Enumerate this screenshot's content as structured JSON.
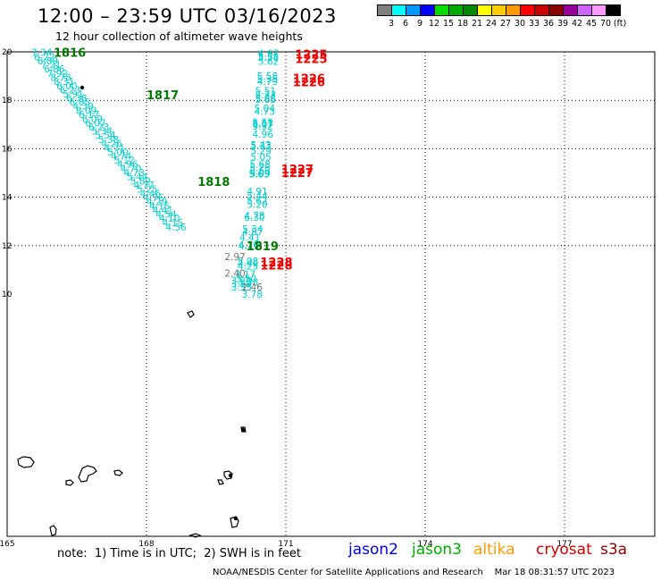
{
  "header": {
    "title": "12:00 – 23:59 UTC 03/16/2023",
    "subtitle": "12 hour collection of altimeter wave heights"
  },
  "legend": {
    "colors": [
      "#7f7f7f",
      "#00ffff",
      "#0099ff",
      "#0000ff",
      "#00dd00",
      "#00aa00",
      "#008800",
      "#ffff00",
      "#ffcc00",
      "#ff9900",
      "#ff0000",
      "#cc0000",
      "#880000",
      "#990099",
      "#cc66ff",
      "#ff99ff",
      "#000000"
    ],
    "labels": [
      "3",
      "6",
      "9",
      "12",
      "15",
      "18",
      "21",
      "24",
      "27",
      "30",
      "33",
      "36",
      "39",
      "42",
      "45",
      "70",
      "(ft)"
    ]
  },
  "map": {
    "lon_ticks": [
      "165",
      "168",
      "171",
      "174",
      "177"
    ],
    "lat_ticks": [
      "20",
      "18",
      "16",
      "14",
      "12",
      "10"
    ],
    "lat_tick_values": [
      20,
      18,
      16,
      14,
      12,
      10
    ],
    "track_colors": {
      "jason3": "#00cccc",
      "cryosat": "#ee0000",
      "low": "#777777"
    },
    "pass_labels": [
      {
        "text": "1816",
        "color": "#007700",
        "lon": 166.0,
        "lat": 19.98
      },
      {
        "text": "1817",
        "color": "#007700",
        "lon": 168.0,
        "lat": 18.22
      },
      {
        "text": "1818",
        "color": "#007700",
        "lon": 169.1,
        "lat": 14.65
      },
      {
        "text": "1819",
        "color": "#007700",
        "lon": 170.15,
        "lat": 12.0
      },
      {
        "text": "1225",
        "color": "#ee0000",
        "lon": 171.2,
        "lat": 19.9
      },
      {
        "text": "1225",
        "color": "#ee0000",
        "lon": 171.2,
        "lat": 19.72
      },
      {
        "text": "1226",
        "color": "#ee0000",
        "lon": 171.15,
        "lat": 18.92
      },
      {
        "text": "1226",
        "color": "#ee0000",
        "lon": 171.15,
        "lat": 18.77
      },
      {
        "text": "1227",
        "color": "#ee0000",
        "lon": 170.9,
        "lat": 15.16
      },
      {
        "text": "1227",
        "color": "#ee0000",
        "lon": 170.9,
        "lat": 15.02
      },
      {
        "text": "1228",
        "color": "#ee0000",
        "lon": 170.45,
        "lat": 11.33
      },
      {
        "text": "1228",
        "color": "#ee0000",
        "lon": 170.45,
        "lat": 11.2
      }
    ],
    "jason3_track": [
      {
        "v": "7.34",
        "lon": 165.52,
        "lat": 19.98
      },
      {
        "v": "6.22",
        "lon": 165.58,
        "lat": 19.8
      },
      {
        "v": "6.89",
        "lon": 165.65,
        "lat": 19.63
      },
      {
        "v": "7.21",
        "lon": 165.72,
        "lat": 19.46
      },
      {
        "v": "6.86",
        "lon": 165.79,
        "lat": 19.29
      },
      {
        "v": "7.92",
        "lon": 165.86,
        "lat": 19.11
      },
      {
        "v": "8.78",
        "lon": 165.93,
        "lat": 18.95
      },
      {
        "v": "8.31",
        "lon": 166.0,
        "lat": 18.78
      },
      {
        "v": "6.00",
        "lon": 166.06,
        "lat": 18.6
      },
      {
        "v": "6.23",
        "lon": 166.13,
        "lat": 18.44
      },
      {
        "v": "5.91",
        "lon": 166.2,
        "lat": 18.26
      },
      {
        "v": "6.38",
        "lon": 166.27,
        "lat": 18.1
      },
      {
        "v": "6.85",
        "lon": 166.34,
        "lat": 17.93
      },
      {
        "v": "4.39",
        "lon": 166.41,
        "lat": 17.76
      },
      {
        "v": "8.09",
        "lon": 166.48,
        "lat": 17.59
      },
      {
        "v": "6.17",
        "lon": 166.54,
        "lat": 17.41
      },
      {
        "v": "6.09",
        "lon": 166.61,
        "lat": 17.24
      },
      {
        "v": "6.07",
        "lon": 166.68,
        "lat": 17.07
      },
      {
        "v": "6.23",
        "lon": 166.75,
        "lat": 16.9
      },
      {
        "v": "5.34",
        "lon": 166.82,
        "lat": 16.73
      },
      {
        "v": "5.54",
        "lon": 166.89,
        "lat": 16.56
      },
      {
        "v": "5.38",
        "lon": 166.96,
        "lat": 16.39
      },
      {
        "v": "4.26",
        "lon": 167.03,
        "lat": 16.22
      },
      {
        "v": "4.71",
        "lon": 167.09,
        "lat": 16.04
      },
      {
        "v": "5.00",
        "lon": 167.16,
        "lat": 15.87
      },
      {
        "v": "4.74",
        "lon": 167.23,
        "lat": 15.7
      },
      {
        "v": "5.12",
        "lon": 167.3,
        "lat": 15.53
      },
      {
        "v": "4.96",
        "lon": 167.37,
        "lat": 15.36
      },
      {
        "v": "4.70",
        "lon": 167.44,
        "lat": 15.19
      },
      {
        "v": "4.73",
        "lon": 167.51,
        "lat": 15.02
      },
      {
        "v": "5.44",
        "lon": 167.58,
        "lat": 14.85
      },
      {
        "v": "5.82",
        "lon": 167.65,
        "lat": 14.67
      },
      {
        "v": "4.77",
        "lon": 167.72,
        "lat": 14.5
      },
      {
        "v": "5.25",
        "lon": 167.79,
        "lat": 14.33
      },
      {
        "v": "4.46",
        "lon": 167.86,
        "lat": 14.16
      },
      {
        "v": "4.76",
        "lon": 167.93,
        "lat": 13.99
      },
      {
        "v": "4.29",
        "lon": 168.0,
        "lat": 13.82
      },
      {
        "v": "4.15",
        "lon": 168.06,
        "lat": 13.64
      },
      {
        "v": "4.41",
        "lon": 168.13,
        "lat": 13.47
      },
      {
        "v": "4.54",
        "lon": 168.2,
        "lat": 13.3
      },
      {
        "v": "4.10",
        "lon": 168.27,
        "lat": 13.13
      },
      {
        "v": "4.15",
        "lon": 168.34,
        "lat": 12.96
      },
      {
        "v": "4.56",
        "lon": 168.41,
        "lat": 12.77
      }
    ],
    "cryosat_track": [
      {
        "v": "4.67",
        "lon": 170.4,
        "lat": 19.95
      },
      {
        "v": "5.38",
        "lon": 170.4,
        "lat": 19.82
      },
      {
        "v": "5.55",
        "lon": 170.4,
        "lat": 19.78
      },
      {
        "v": "5.62",
        "lon": 170.4,
        "lat": 19.62
      },
      {
        "v": "5.58",
        "lon": 170.38,
        "lat": 19.0
      },
      {
        "v": "5.35",
        "lon": 170.38,
        "lat": 18.9
      },
      {
        "v": "4.79",
        "lon": 170.38,
        "lat": 18.78
      },
      {
        "v": "5.51",
        "lon": 170.34,
        "lat": 18.4
      },
      {
        "v": "5.33",
        "lon": 170.34,
        "lat": 18.23
      },
      {
        "v": "5.88",
        "lon": 170.34,
        "lat": 18.08
      },
      {
        "v": "5.65",
        "lon": 170.34,
        "lat": 18.04
      },
      {
        "v": "5.04",
        "lon": 170.32,
        "lat": 17.68
      },
      {
        "v": "4.73",
        "lon": 170.32,
        "lat": 17.55
      },
      {
        "v": "5.51",
        "lon": 170.28,
        "lat": 17.1
      },
      {
        "v": "5.67",
        "lon": 170.28,
        "lat": 17.04
      },
      {
        "v": "6.07",
        "lon": 170.28,
        "lat": 17.02
      },
      {
        "v": "5.32",
        "lon": 170.28,
        "lat": 16.93
      },
      {
        "v": "4.96",
        "lon": 170.28,
        "lat": 16.6
      },
      {
        "v": "5.43",
        "lon": 170.24,
        "lat": 16.17
      },
      {
        "v": "5.33",
        "lon": 170.24,
        "lat": 16.12
      },
      {
        "v": "5.29",
        "lon": 170.24,
        "lat": 15.93
      },
      {
        "v": "5.05",
        "lon": 170.24,
        "lat": 15.67
      },
      {
        "v": "5.68",
        "lon": 170.22,
        "lat": 15.36
      },
      {
        "v": "5.25",
        "lon": 170.22,
        "lat": 15.22
      },
      {
        "v": "5.68",
        "lon": 170.22,
        "lat": 15.1
      },
      {
        "v": "5.09",
        "lon": 170.22,
        "lat": 14.98
      },
      {
        "v": "5.63",
        "lon": 170.2,
        "lat": 14.96
      },
      {
        "v": "4.91",
        "lon": 170.16,
        "lat": 14.25
      },
      {
        "v": "5.44",
        "lon": 170.16,
        "lat": 14.05
      },
      {
        "v": "5.62",
        "lon": 170.16,
        "lat": 13.85
      },
      {
        "v": "5.20",
        "lon": 170.16,
        "lat": 13.7
      },
      {
        "v": "4.78",
        "lon": 170.1,
        "lat": 13.25
      },
      {
        "v": "6.30",
        "lon": 170.1,
        "lat": 13.18
      },
      {
        "v": "5.34",
        "lon": 170.06,
        "lat": 12.7
      },
      {
        "v": "4.87",
        "lon": 170.06,
        "lat": 12.58
      },
      {
        "v": "4.41",
        "lon": 170.0,
        "lat": 12.35
      },
      {
        "v": "4.20",
        "lon": 169.98,
        "lat": 12.05
      },
      {
        "v": "4.15",
        "lon": 169.98,
        "lat": 12.0
      },
      {
        "v": "5.08",
        "lon": 169.96,
        "lat": 11.37
      },
      {
        "v": "4.40",
        "lon": 169.96,
        "lat": 11.27
      },
      {
        "v": "4.25",
        "lon": 169.96,
        "lat": 11.17
      },
      {
        "v": "3.17",
        "lon": 169.9,
        "lat": 10.83
      },
      {
        "v": "3.50",
        "lon": 169.92,
        "lat": 10.65
      },
      {
        "v": "3.20",
        "lon": 169.82,
        "lat": 10.55
      },
      {
        "v": "3.38",
        "lon": 169.96,
        "lat": 10.5
      },
      {
        "v": "3.29",
        "lon": 169.82,
        "lat": 10.43
      },
      {
        "v": "3.35",
        "lon": 169.82,
        "lat": 10.3
      },
      {
        "v": "3.78",
        "lon": 170.05,
        "lat": 10.0
      }
    ],
    "low_track": [
      {
        "v": "2.97",
        "lon": 169.68,
        "lat": 11.55
      },
      {
        "v": "2.40",
        "lon": 169.68,
        "lat": 10.87
      },
      {
        "v": "2.46",
        "lon": 170.05,
        "lat": 10.3
      }
    ]
  },
  "footer": {
    "note": "note:  1) Time is in UTC;  2) SWH is in feet",
    "satellites": [
      {
        "name": "jason2",
        "color": "#0000dd"
      },
      {
        "name": "jason3",
        "color": "#00aa00"
      },
      {
        "name": "altika",
        "color": "#ff9900"
      },
      {
        "name": "cryosat",
        "color": "#cc0000"
      },
      {
        "name": "s3a",
        "color": "#880000"
      }
    ],
    "credit": "NOAA/NESDIS Center for Satellite Applications and Research    Mar 18 08:31:57 UTC 2023"
  }
}
